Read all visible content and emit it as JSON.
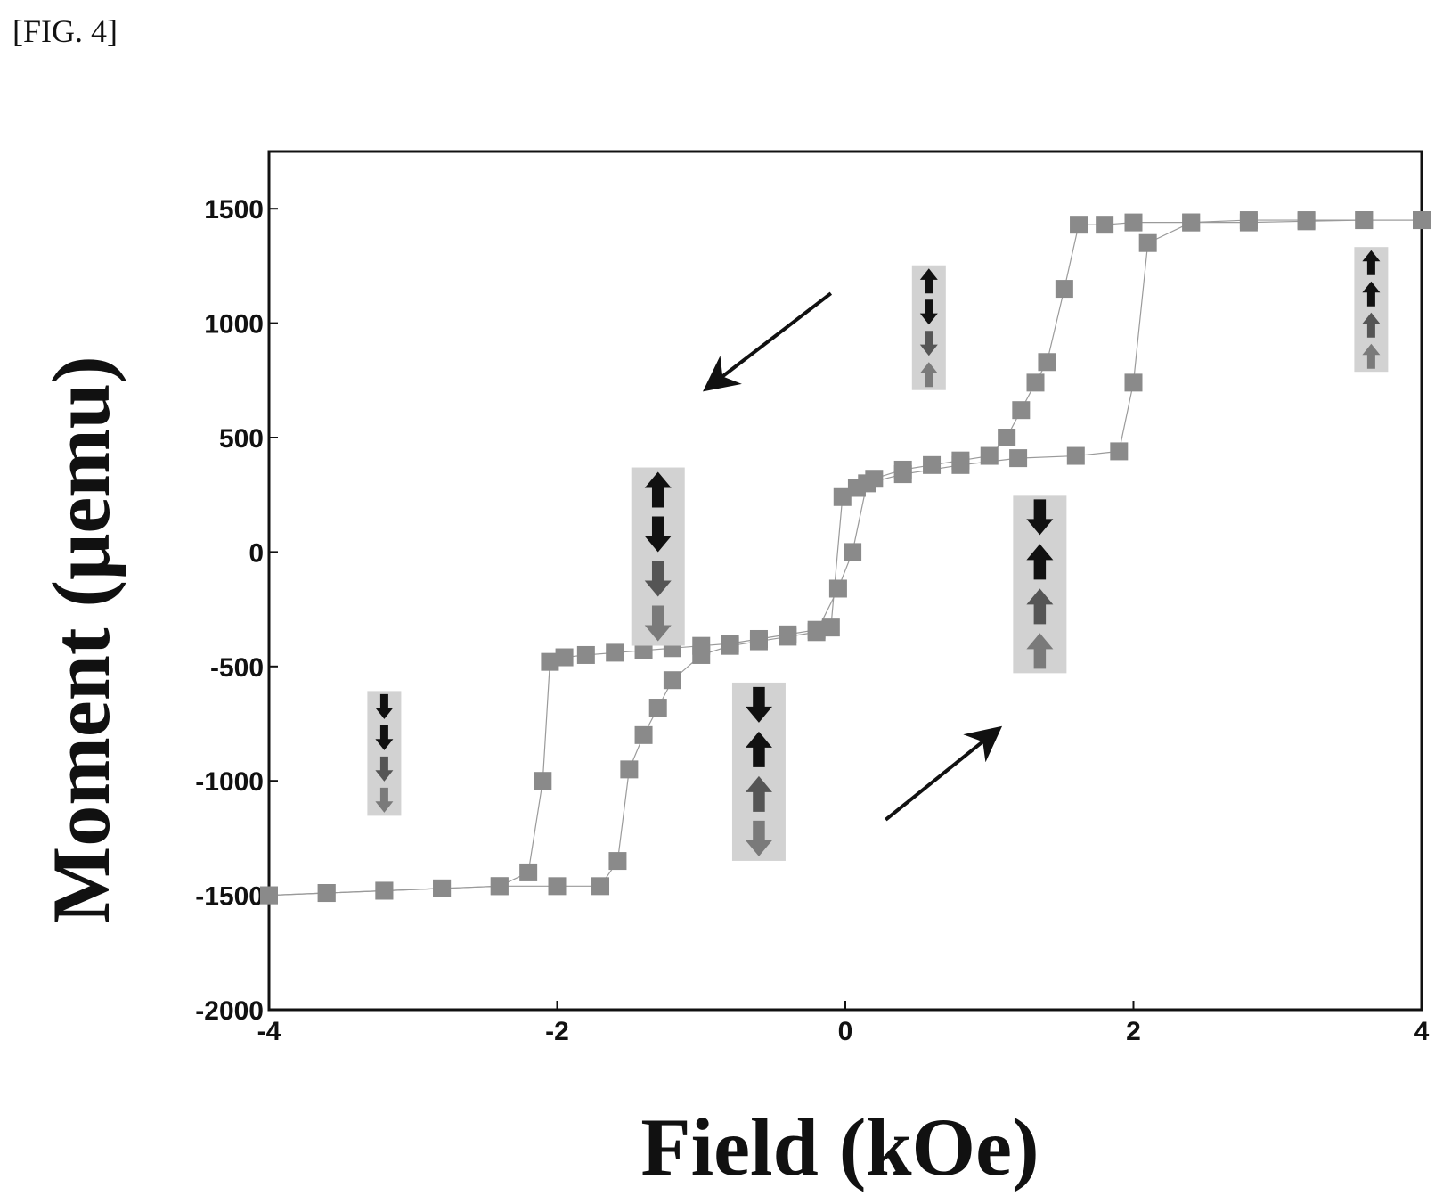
{
  "figure_label": "[FIG. 4]",
  "chart_data": {
    "type": "scatter",
    "xlabel": "Field (kOe)",
    "ylabel": "Moment (μemu)",
    "xlim": [
      -4,
      4
    ],
    "ylim": [
      -2000,
      1750
    ],
    "xticks": [
      -4,
      -2,
      0,
      2,
      4
    ],
    "yticks": [
      -2000,
      -1500,
      -1000,
      -500,
      0,
      500,
      1000,
      1500
    ],
    "marker_color": "#8a8a8a",
    "series": [
      {
        "x": [
          4.0,
          3.6,
          3.2,
          2.8,
          2.4,
          2.0,
          1.8,
          1.62,
          1.52,
          1.4,
          1.32,
          1.22,
          1.12,
          1.0,
          0.8,
          0.6,
          0.4,
          0.2,
          0.08,
          -0.02,
          -0.1,
          -0.2,
          -0.4,
          -0.6,
          -0.8,
          -1.0,
          -1.2,
          -1.4,
          -1.6,
          -1.8,
          -1.95,
          -2.05,
          -2.1,
          -2.2,
          -2.4,
          -2.8,
          -3.2,
          -3.6,
          -4.0
        ],
        "y": [
          1450,
          1450,
          1445,
          1440,
          1440,
          1440,
          1430,
          1430,
          1150,
          830,
          740,
          620,
          500,
          420,
          400,
          380,
          360,
          320,
          280,
          240,
          -330,
          -340,
          -360,
          -380,
          -400,
          -410,
          -420,
          -430,
          -440,
          -450,
          -460,
          -480,
          -1000,
          -1400,
          -1460,
          -1470,
          -1480,
          -1490,
          -1500
        ]
      },
      {
        "x": [
          -4.0,
          -3.6,
          -3.2,
          -2.8,
          -2.4,
          -2.0,
          -1.7,
          -1.58,
          -1.5,
          -1.4,
          -1.3,
          -1.2,
          -1.0,
          -0.8,
          -0.6,
          -0.4,
          -0.2,
          -0.05,
          0.05,
          0.15,
          0.4,
          0.8,
          1.2,
          1.6,
          1.9,
          2.0,
          2.1,
          2.4,
          2.8,
          3.2,
          3.6,
          4.0
        ],
        "y": [
          -1500,
          -1490,
          -1480,
          -1470,
          -1460,
          -1460,
          -1460,
          -1350,
          -950,
          -800,
          -680,
          -560,
          -450,
          -410,
          -390,
          -370,
          -350,
          -160,
          0,
          300,
          340,
          380,
          410,
          420,
          440,
          740,
          1350,
          1440,
          1450,
          1450,
          1450,
          1450
        ]
      }
    ],
    "annotations": {
      "sweep_arrows": [
        {
          "from": [
            -0.1,
            1130
          ],
          "to": [
            -0.95,
            720
          ]
        },
        {
          "from": [
            0.28,
            -1170
          ],
          "to": [
            1.05,
            -780
          ]
        }
      ],
      "spin_stacks": [
        {
          "x": 3.65,
          "y": 1060,
          "size": "small",
          "spins": [
            "up",
            "up",
            "up",
            "up"
          ]
        },
        {
          "x": 0.58,
          "y": 980,
          "size": "small",
          "spins": [
            "up",
            "down",
            "down",
            "up"
          ]
        },
        {
          "x": -1.3,
          "y": -20,
          "size": "large",
          "spins": [
            "up",
            "down",
            "down",
            "down"
          ]
        },
        {
          "x": 1.35,
          "y": -140,
          "size": "large",
          "spins": [
            "down",
            "up",
            "up",
            "up"
          ]
        },
        {
          "x": -0.6,
          "y": -960,
          "size": "large",
          "spins": [
            "down",
            "up",
            "up",
            "down"
          ]
        },
        {
          "x": -3.2,
          "y": -880,
          "size": "small",
          "spins": [
            "down",
            "down",
            "down",
            "down"
          ]
        }
      ]
    }
  }
}
